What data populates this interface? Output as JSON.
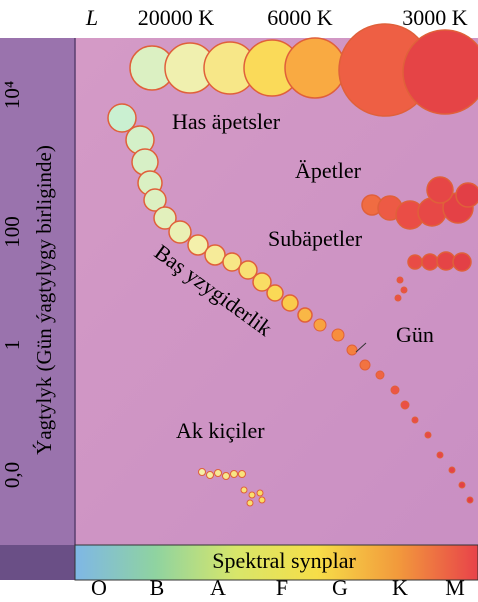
{
  "top_axis": {
    "symbol": "L",
    "temperatures": [
      "20000 K",
      "6000 K",
      "3000 K"
    ]
  },
  "y_axis": {
    "title": "Ýagtylyk (Gün ýagtylygy birliginde)",
    "labels": [
      "10⁴",
      "100",
      "1",
      "0,0"
    ]
  },
  "regions": {
    "supergiants": "Has äpetsler",
    "giants": "Äpetler",
    "subgiants": "Subäpetler",
    "main_sequence": "Baş yzygiderlik",
    "sun": "Gün",
    "white_dwarfs": "Ak kiçiler"
  },
  "spectral_bar": {
    "title": "Spektral synplar",
    "classes": [
      "O",
      "B",
      "A",
      "F",
      "G",
      "K",
      "M"
    ]
  }
}
